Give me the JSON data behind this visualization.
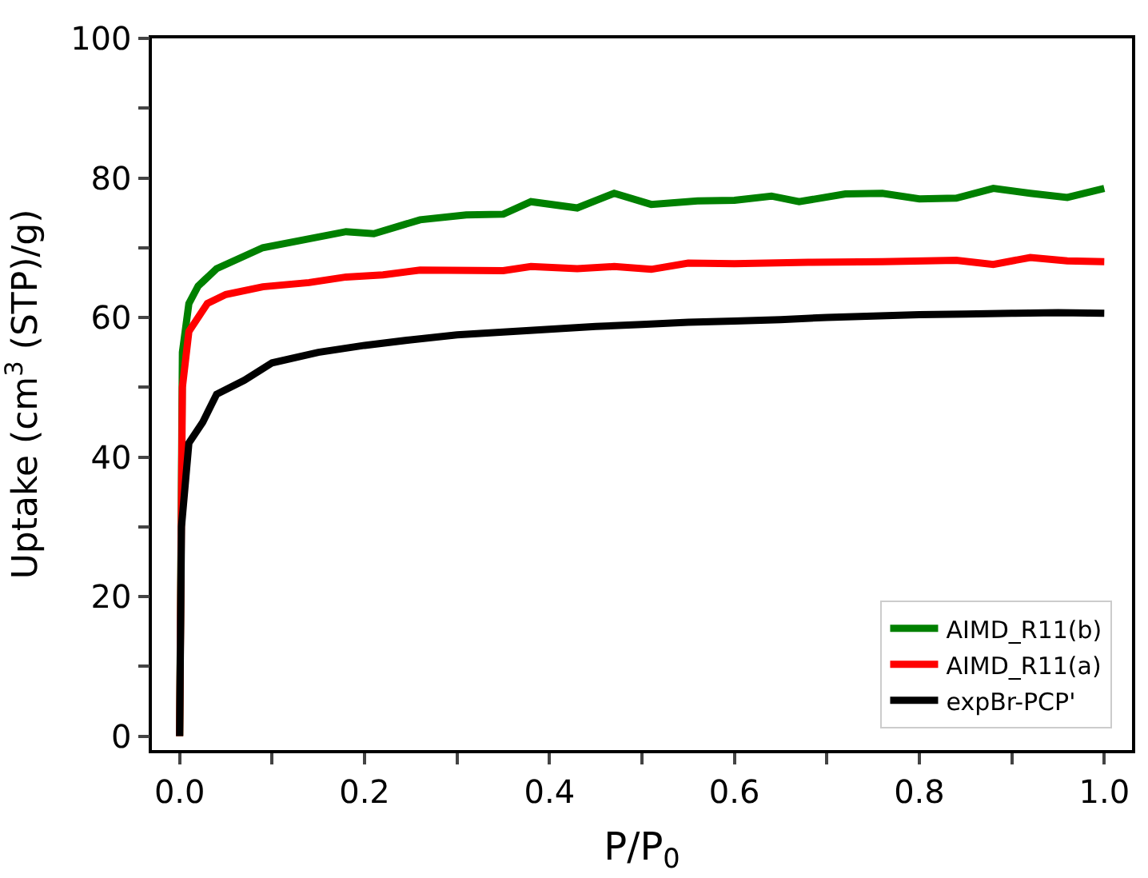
{
  "chart_data": {
    "type": "line",
    "xlabel": "P/P$_{0}$",
    "ylabel": "Uptake (cm$^{3}$ (STP)/g)",
    "xlim": [
      -0.03,
      1.03
    ],
    "ylim": [
      -2,
      100
    ],
    "xticks": [
      {
        "value": 0.0,
        "label": "0.0"
      },
      {
        "value": 0.1,
        "label": null
      },
      {
        "value": 0.2,
        "label": "0.2"
      },
      {
        "value": 0.3,
        "label": null
      },
      {
        "value": 0.4,
        "label": "0.4"
      },
      {
        "value": 0.5,
        "label": null
      },
      {
        "value": 0.6,
        "label": "0.6"
      },
      {
        "value": 0.7,
        "label": null
      },
      {
        "value": 0.8,
        "label": "0.8"
      },
      {
        "value": 0.9,
        "label": null
      },
      {
        "value": 1.0,
        "label": "1.0"
      }
    ],
    "yticks": [
      0,
      {
        "value": 10,
        "label": null
      },
      20,
      {
        "value": 30,
        "label": null
      },
      40,
      {
        "value": 50,
        "label": null
      },
      60,
      {
        "value": 70,
        "label": null
      },
      80,
      {
        "value": 90,
        "label": null
      },
      100
    ],
    "legend": "bottom right",
    "marker": "none",
    "line_style": "solid",
    "series": [
      {
        "name": "AIMD_R11(b)",
        "color": "#008000",
        "x": [
          0,
          0.003,
          0.01,
          0.02,
          0.04,
          0.09,
          0.18,
          0.21,
          0.26,
          0.31,
          0.35,
          0.38,
          0.43,
          0.47,
          0.51,
          0.56,
          0.6,
          0.64,
          0.67,
          0.72,
          0.76,
          0.8,
          0.84,
          0.88,
          0.92,
          0.96,
          1.0
        ],
        "values": [
          0,
          55,
          62,
          64.5,
          67,
          70,
          72.3,
          72,
          74,
          74.7,
          74.8,
          76.6,
          75.7,
          77.8,
          76.2,
          76.7,
          76.8,
          77.4,
          76.6,
          77.7,
          77.8,
          77,
          77.1,
          78.5,
          77.8,
          77.2,
          78.5
        ]
      },
      {
        "name": "AIMD_R11(a)",
        "color": "#ff0000",
        "x": [
          0,
          0.003,
          0.01,
          0.03,
          0.05,
          0.09,
          0.14,
          0.18,
          0.22,
          0.26,
          0.35,
          0.38,
          0.43,
          0.47,
          0.51,
          0.55,
          0.6,
          0.68,
          0.76,
          0.84,
          0.88,
          0.92,
          0.96,
          1.0
        ],
        "values": [
          0,
          50,
          58,
          62,
          63.3,
          64.4,
          65,
          65.8,
          66.1,
          66.8,
          66.7,
          67.3,
          67,
          67.3,
          66.9,
          67.8,
          67.7,
          67.9,
          68,
          68.2,
          67.6,
          68.6,
          68.1,
          68
        ]
      },
      {
        "name": "expBr-PCP'",
        "color": "#000000",
        "x": [
          0,
          0.002,
          0.01,
          0.025,
          0.04,
          0.07,
          0.1,
          0.15,
          0.2,
          0.25,
          0.3,
          0.35,
          0.4,
          0.45,
          0.5,
          0.55,
          0.6,
          0.65,
          0.7,
          0.75,
          0.8,
          0.85,
          0.9,
          0.95,
          1.0
        ],
        "values": [
          0,
          30,
          42,
          45,
          49,
          51,
          53.5,
          55,
          56,
          56.8,
          57.5,
          57.9,
          58.3,
          58.7,
          59,
          59.3,
          59.5,
          59.7,
          60,
          60.2,
          60.4,
          60.5,
          60.6,
          60.7,
          60.6
        ]
      }
    ]
  }
}
